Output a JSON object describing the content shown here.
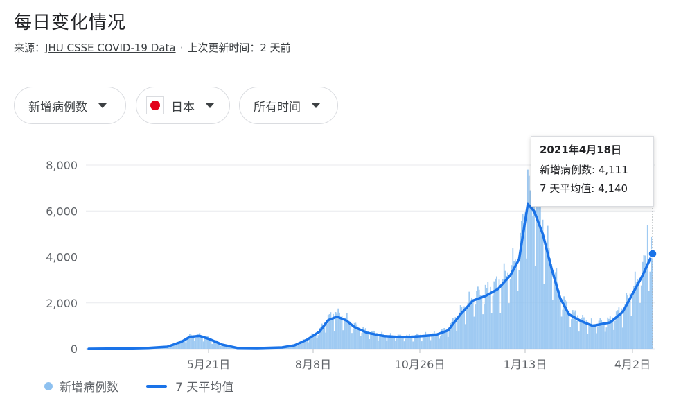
{
  "header": {
    "title": "每日变化情况",
    "source_prefix": "来源：",
    "source_link": "JHU CSSE COVID-19 Data",
    "separator": "·",
    "updated": "上次更新时间：2 天前"
  },
  "filters": {
    "metric": "新增病例数",
    "country": "日本",
    "range": "所有时间"
  },
  "tooltip": {
    "date": "2021年4月18日",
    "cases_label": "新增病例数:",
    "cases_value": "4,111",
    "avg_label": "7 天平均值:",
    "avg_value": "4,140"
  },
  "legend": {
    "bars": "新增病例数",
    "line": "7 天平均值"
  },
  "colors": {
    "bars": "#8ec1f0",
    "line": "#1a73e8",
    "grid": "#e8eaed",
    "text": "#5f6368"
  },
  "chart_data": {
    "type": "bar",
    "title": "每日变化情况",
    "ylim": [
      0,
      8000
    ],
    "y_ticks": [
      0,
      2000,
      4000,
      6000,
      8000
    ],
    "y_tick_labels": [
      "0",
      "2,000",
      "4,000",
      "6,000",
      "8,000"
    ],
    "x_tick_labels": [
      "5月21日",
      "8月8日",
      "10月26日",
      "1月13日",
      "4月2日"
    ],
    "x_range": [
      "2020-01-22",
      "2021-04-18"
    ],
    "grid": true,
    "legend_position": "bottom-left",
    "series": [
      {
        "name": "7 天平均值",
        "type": "line",
        "points": [
          [
            "2020-01-22",
            0
          ],
          [
            "2020-02-20",
            15
          ],
          [
            "2020-03-10",
            40
          ],
          [
            "2020-03-25",
            90
          ],
          [
            "2020-04-05",
            300
          ],
          [
            "2020-04-12",
            520
          ],
          [
            "2020-04-20",
            560
          ],
          [
            "2020-04-28",
            420
          ],
          [
            "2020-05-08",
            180
          ],
          [
            "2020-05-20",
            40
          ],
          [
            "2020-06-05",
            30
          ],
          [
            "2020-06-25",
            60
          ],
          [
            "2020-07-05",
            150
          ],
          [
            "2020-07-15",
            400
          ],
          [
            "2020-07-25",
            750
          ],
          [
            "2020-08-01",
            1250
          ],
          [
            "2020-08-08",
            1400
          ],
          [
            "2020-08-15",
            1250
          ],
          [
            "2020-08-22",
            950
          ],
          [
            "2020-09-01",
            700
          ],
          [
            "2020-09-15",
            550
          ],
          [
            "2020-10-01",
            500
          ],
          [
            "2020-10-15",
            550
          ],
          [
            "2020-10-26",
            600
          ],
          [
            "2020-11-05",
            800
          ],
          [
            "2020-11-15",
            1500
          ],
          [
            "2020-11-25",
            2100
          ],
          [
            "2020-12-05",
            2300
          ],
          [
            "2020-12-15",
            2600
          ],
          [
            "2020-12-25",
            3200
          ],
          [
            "2021-01-01",
            3900
          ],
          [
            "2021-01-08",
            6300
          ],
          [
            "2021-01-13",
            6000
          ],
          [
            "2021-01-20",
            5000
          ],
          [
            "2021-01-27",
            3500
          ],
          [
            "2021-02-03",
            2200
          ],
          [
            "2021-02-10",
            1500
          ],
          [
            "2021-02-20",
            1200
          ],
          [
            "2021-03-01",
            1000
          ],
          [
            "2021-03-15",
            1150
          ],
          [
            "2021-03-25",
            1600
          ],
          [
            "2021-04-02",
            2400
          ],
          [
            "2021-04-10",
            3200
          ],
          [
            "2021-04-18",
            4140
          ]
        ]
      },
      {
        "name": "新增病例数",
        "type": "bar",
        "highlights": [
          [
            "2020-08-07",
            1600
          ],
          [
            "2021-01-08",
            7800
          ],
          [
            "2021-01-15",
            7100
          ],
          [
            "2021-04-14",
            5400
          ],
          [
            "2021-04-18",
            4111
          ]
        ]
      }
    ]
  }
}
